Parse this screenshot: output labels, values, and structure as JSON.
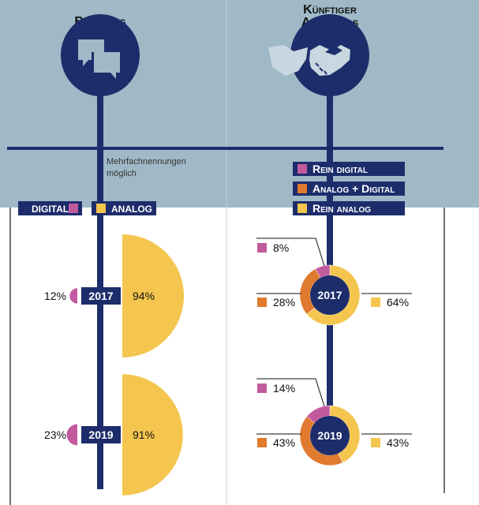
{
  "colors": {
    "navy": "#1d2d6b",
    "background": "#9fb9c7",
    "digital": "#c25a9e",
    "analog": "#f4c64f",
    "mixed": "#e07a2e"
  },
  "left": {
    "title": "Beratung",
    "icon": "speech-bubbles-icon",
    "note_line1": "Mehrfachnennungen",
    "note_line2": "möglich",
    "legend_digital": "DIGITAL",
    "legend_analog": "ANALOG"
  },
  "right": {
    "title_line1": "Künftiger",
    "title_line2": "Abschluss",
    "icon": "handshake-icon",
    "legend": [
      "Rein digital",
      "Analog + Digital",
      "Rein analog"
    ]
  },
  "chart_data": [
    {
      "type": "semicircle-area",
      "title": "Beratung",
      "note": "Mehrfachnennungen möglich",
      "categories": [
        "2017",
        "2019"
      ],
      "series": [
        {
          "name": "Digital",
          "values": [
            12,
            23
          ],
          "labels": [
            "12%",
            "23%"
          ]
        },
        {
          "name": "Analog",
          "values": [
            94,
            91
          ],
          "labels": [
            "94%",
            "91%"
          ]
        }
      ]
    },
    {
      "type": "pie",
      "title": "Künftiger Abschluss",
      "categories": [
        "2017",
        "2019"
      ],
      "series": [
        {
          "name": "Rein digital",
          "values": [
            8,
            14
          ],
          "labels": [
            "8%",
            "14%"
          ]
        },
        {
          "name": "Analog + Digital",
          "values": [
            28,
            43
          ],
          "labels": [
            "28%",
            "43%"
          ]
        },
        {
          "name": "Rein analog",
          "values": [
            64,
            43
          ],
          "labels": [
            "64%",
            "43%"
          ]
        }
      ]
    }
  ]
}
